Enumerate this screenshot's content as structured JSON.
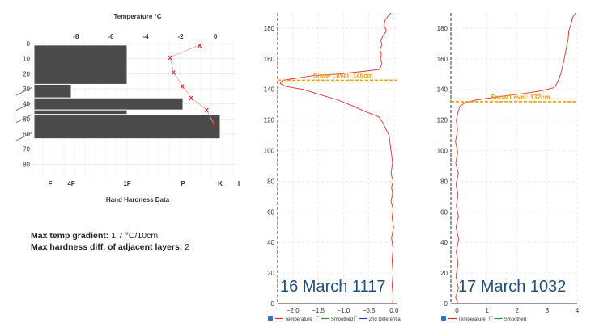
{
  "profile": {
    "top_title": "Temperature °C",
    "bottom_title": "Hand Hardness Data",
    "stats": {
      "gradient_label": "Max temp gradient:",
      "gradient_value": "1.7 °C/10cm",
      "hardness_label": "Max hardness diff. of adjacent layers:",
      "hardness_value": "2"
    }
  },
  "chart_data": [
    {
      "type": "bar",
      "title": "",
      "top_axis": {
        "label": "Temperature °C",
        "ticks": [
          -8,
          -6,
          -4,
          -2,
          0
        ],
        "range": [
          -10.5,
          1.2
        ]
      },
      "left_axis": {
        "ticks": [
          0,
          10,
          20,
          30,
          40,
          50,
          60,
          70,
          80
        ],
        "range": [
          0,
          80
        ]
      },
      "bottom_axis": {
        "label": "Hand Hardness Data",
        "ticks": [
          "F",
          "4F",
          "1F",
          "P",
          "K",
          "I"
        ]
      },
      "layers": [
        {
          "top": 1,
          "bottom": 27,
          "hardness": "1F"
        },
        {
          "top": 27,
          "bottom": 36,
          "hardness": "4F"
        },
        {
          "top": 36,
          "bottom": 44,
          "hardness": "P"
        },
        {
          "top": 44,
          "bottom": 47,
          "hardness": "1F"
        },
        {
          "top": 47,
          "bottom": 63,
          "hardness": "K"
        }
      ],
      "temperature": {
        "depth": [
          1,
          9,
          19,
          28,
          36,
          44,
          53
        ],
        "temp": [
          -0.9,
          -2.6,
          -2.4,
          -1.9,
          -1.4,
          -0.5,
          -0.1
        ]
      }
    },
    {
      "type": "line",
      "annotation": "16 March 1117",
      "snow_level_label": "Snow Level: 146cm",
      "snow_level": 146,
      "xlim": [
        -2.3,
        0.05
      ],
      "ylim": [
        0,
        190
      ],
      "xticks": [
        -2.0,
        -1.5,
        -1.0,
        -0.5,
        0.0
      ],
      "yticks": [
        0,
        20,
        40,
        60,
        80,
        100,
        120,
        140,
        160,
        180
      ],
      "legend": [
        "Temperature",
        "Smoothed",
        "2nd Differential"
      ],
      "series": [
        {
          "name": "Temperature",
          "x": [
            -0.06,
            -0.12,
            -0.18,
            -0.2,
            -0.15,
            -0.22,
            -0.26,
            -0.24,
            -0.28,
            -0.25,
            -0.27,
            -0.24,
            -0.26,
            -0.3,
            -0.55,
            -1.1,
            -1.6,
            -2.0,
            -2.2,
            -2.25,
            -2.15,
            -1.8,
            -1.5,
            -1.1,
            -0.8,
            -0.6,
            -0.45,
            -0.3,
            -0.22,
            -0.1,
            -0.06,
            -0.03,
            -0.06,
            -0.02,
            -0.05,
            -0.03,
            -0.06,
            -0.02,
            -0.04,
            -0.01,
            -0.05,
            -0.02,
            -0.04,
            -0.02,
            -0.04,
            -0.02,
            -0.03
          ],
          "y": [
            190,
            188,
            185,
            182,
            178,
            175,
            172,
            169,
            166,
            163,
            160,
            157,
            155,
            153,
            152,
            150,
            149,
            147,
            146,
            144,
            142,
            140,
            137,
            133,
            129,
            126,
            124,
            122,
            118,
            110,
            100,
            92,
            85,
            80,
            76,
            72,
            67,
            62,
            56,
            50,
            43,
            36,
            28,
            20,
            12,
            5,
            0
          ]
        }
      ]
    },
    {
      "type": "line",
      "annotation": "17 March 1032",
      "snow_level_label": "Snow Level: 132cm",
      "snow_level": 132,
      "xlim": [
        -0.2,
        4.0
      ],
      "ylim": [
        0,
        190
      ],
      "xticks": [
        0,
        1,
        2,
        3,
        4
      ],
      "yticks": [
        0,
        20,
        40,
        60,
        80,
        100,
        120,
        140,
        160,
        180
      ],
      "legend": [
        "Temperature",
        "Smoothed"
      ],
      "series": [
        {
          "name": "Temperature",
          "x": [
            3.95,
            3.85,
            3.8,
            3.72,
            3.7,
            3.65,
            3.6,
            3.55,
            3.48,
            3.4,
            3.3,
            3.2,
            2.8,
            2.1,
            1.3,
            0.6,
            0.25,
            0.1,
            0.05,
            -0.02,
            0.02,
            -0.05,
            0.03,
            -0.04,
            0.05,
            -0.03,
            0.04,
            -0.02,
            0.05,
            -0.03,
            0.06,
            -0.02,
            0.04,
            -0.03,
            0.05,
            -0.04,
            0.03
          ],
          "y": [
            190,
            187,
            183,
            178,
            173,
            168,
            163,
            158,
            152,
            147,
            143,
            141,
            139,
            137,
            135,
            133,
            131,
            129,
            126,
            120,
            113,
            106,
            99,
            92,
            85,
            78,
            71,
            64,
            57,
            50,
            42,
            34,
            26,
            18,
            10,
            4,
            0
          ]
        }
      ]
    }
  ]
}
